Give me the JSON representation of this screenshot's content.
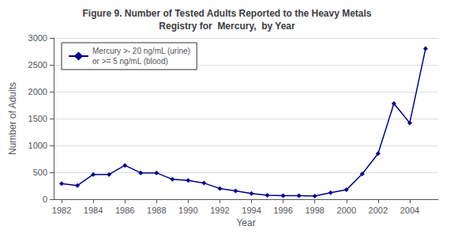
{
  "chart_data": {
    "type": "line",
    "title": "Figure 9. Number of Tested Adults Reported to the Heavy Metals\nRegistry for  Mercury,  by Year",
    "xlabel": "Year",
    "ylabel": "Number of Adults",
    "x": [
      1982,
      1983,
      1984,
      1985,
      1986,
      1987,
      1988,
      1989,
      1990,
      1991,
      1992,
      1993,
      1994,
      1995,
      1996,
      1997,
      1998,
      1999,
      2000,
      2001,
      2002,
      2003,
      2004,
      2005
    ],
    "series": [
      {
        "name": "Mercury >- 20 ng/mL (urine)\nor >= 5 ng/mL (blood)",
        "color": "#00008B",
        "marker": "diamond",
        "values": [
          290,
          255,
          460,
          460,
          630,
          490,
          490,
          370,
          350,
          300,
          200,
          155,
          105,
          75,
          65,
          65,
          60,
          120,
          175,
          470,
          850,
          1780,
          1420,
          2800
        ]
      }
    ],
    "xlim": [
      1981.5,
      2005.8
    ],
    "xticks": [
      1982,
      1984,
      1986,
      1988,
      1990,
      1992,
      1994,
      1996,
      1998,
      2000,
      2002,
      2004
    ],
    "ylim": [
      0,
      3000
    ],
    "yticks": [
      0,
      500,
      1000,
      1500,
      2000,
      2500,
      3000
    ],
    "grid": true,
    "legend": "upper left"
  }
}
